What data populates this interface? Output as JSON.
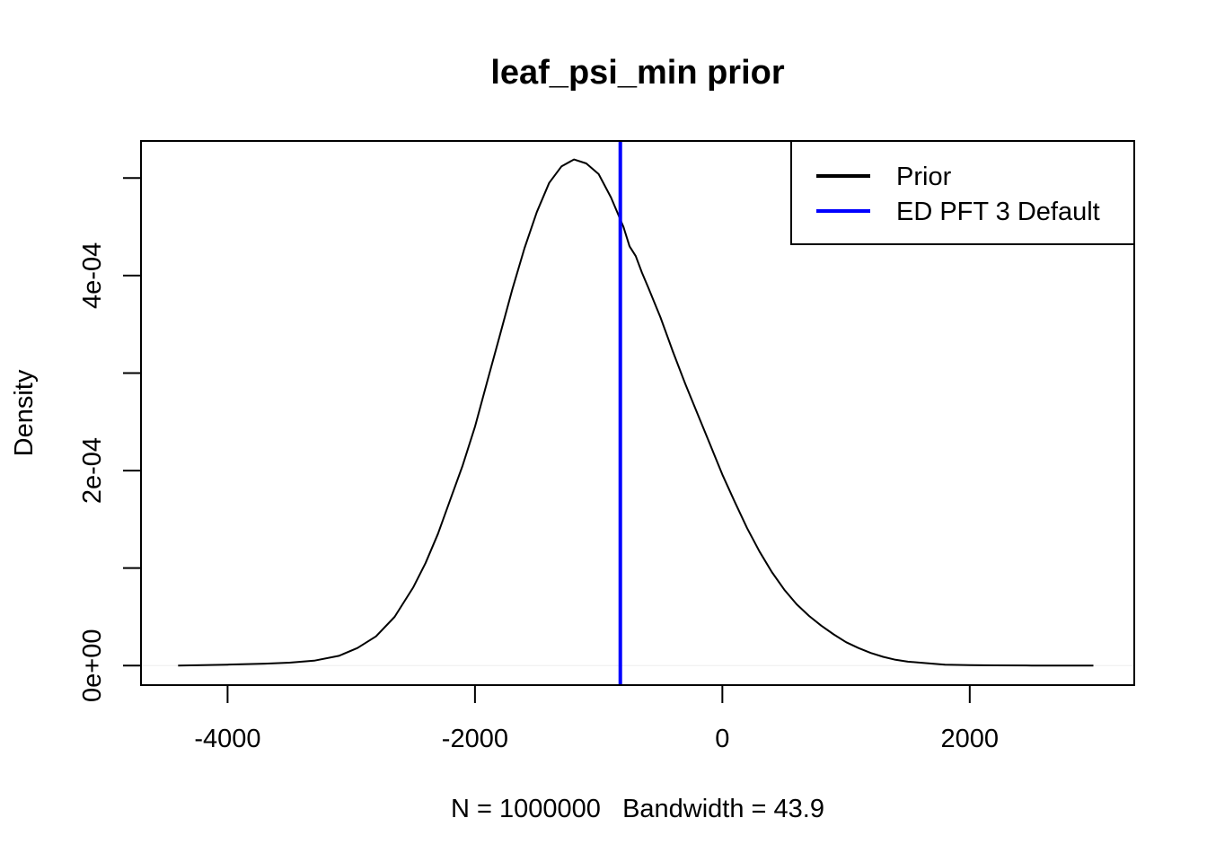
{
  "chart_data": {
    "type": "line",
    "title": "leaf_psi_min prior",
    "xlabel": "N = 1000000   Bandwidth = 43.9",
    "ylabel": "Density",
    "xlim": [
      -4700,
      3330
    ],
    "ylim": [
      -2e-05,
      0.000538
    ],
    "x_ticks": [
      -4000,
      -2000,
      0,
      2000
    ],
    "x_tick_labels": [
      "-4000",
      "-2000",
      "0",
      "2000"
    ],
    "y_ticks": [
      0,
      0.0001,
      0.0002,
      0.0003,
      0.0004,
      0.0005
    ],
    "y_tick_labels": [
      "0e+00",
      "",
      "2e-04",
      "",
      "4e-04",
      ""
    ],
    "grid": false,
    "legend": {
      "placement": "top-right",
      "entries": [
        {
          "label": "Prior",
          "color": "#000000"
        },
        {
          "label": "ED PFT 3 Default",
          "color": "#0000ff"
        }
      ]
    },
    "series": [
      {
        "name": "Prior",
        "color": "#000000",
        "x": [
          -4400,
          -4000,
          -3700,
          -3500,
          -3300,
          -3100,
          -2950,
          -2800,
          -2650,
          -2500,
          -2400,
          -2300,
          -2200,
          -2100,
          -2000,
          -1900,
          -1800,
          -1700,
          -1600,
          -1500,
          -1400,
          -1300,
          -1200,
          -1100,
          -1000,
          -900,
          -800,
          -750,
          -700,
          -650,
          -600,
          -500,
          -400,
          -300,
          -200,
          -100,
          0,
          100,
          200,
          300,
          400,
          500,
          600,
          700,
          800,
          900,
          1000,
          1100,
          1200,
          1300,
          1400,
          1500,
          1600,
          1700,
          1800,
          2000,
          2200,
          2500,
          3000
        ],
        "y": [
          0,
          1e-06,
          2e-06,
          3e-06,
          5e-06,
          1e-05,
          1.8e-05,
          3e-05,
          5e-05,
          8e-05,
          0.000105,
          0.000135,
          0.00017,
          0.000205,
          0.000245,
          0.000292,
          0.000338,
          0.000385,
          0.000428,
          0.000465,
          0.000495,
          0.000512,
          0.000519,
          0.000515,
          0.000504,
          0.00048,
          0.00045,
          0.00043,
          0.00042,
          0.000403,
          0.000388,
          0.000357,
          0.000322,
          0.000289,
          0.000258,
          0.000227,
          0.000196,
          0.000168,
          0.000141,
          0.000117,
          9.6e-05,
          7.8e-05,
          6.3e-05,
          5.1e-05,
          4.1e-05,
          3.2e-05,
          2.4e-05,
          1.8e-05,
          1.3e-05,
          9e-06,
          6e-06,
          4e-06,
          3e-06,
          2e-06,
          1e-06,
          5e-07,
          3e-07,
          1e-07,
          0
        ]
      },
      {
        "name": "ED PFT 3 Default",
        "color": "#0000ff",
        "type": "vline",
        "x": -825
      }
    ]
  }
}
